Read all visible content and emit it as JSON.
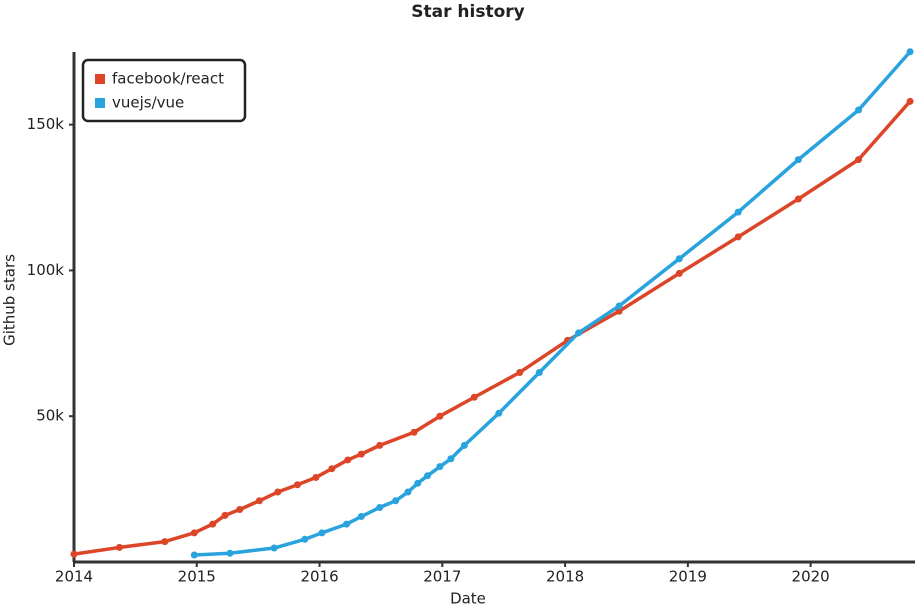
{
  "chart_data": {
    "type": "line",
    "title": "Star history",
    "x_label": "Date",
    "y_label": "Github stars",
    "xlim": [
      2014,
      2020.85
    ],
    "xticks": [
      2014,
      2015,
      2016,
      2017,
      2018,
      2019,
      2020
    ],
    "ylim": [
      0,
      178000
    ],
    "yticks": [
      {
        "value": 50000,
        "label": "50k"
      },
      {
        "value": 100000,
        "label": "100k"
      },
      {
        "value": 150000,
        "label": "150k"
      }
    ],
    "legend": "top-left",
    "series": [
      {
        "name": "facebook/react",
        "color": "#dd4528",
        "x": [
          2014.0,
          2014.37,
          2014.74,
          2014.98,
          2015.13,
          2015.23,
          2015.35,
          2015.51,
          2015.66,
          2015.82,
          2015.97,
          2016.1,
          2016.23,
          2016.34,
          2016.49,
          2016.77,
          2016.98,
          2017.26,
          2017.63,
          2018.02,
          2018.44,
          2018.93,
          2019.41,
          2019.9,
          2020.39,
          2020.81
        ],
        "values": [
          2700,
          5000,
          7000,
          10000,
          13000,
          16000,
          18000,
          21000,
          24000,
          26500,
          29000,
          32000,
          35000,
          37000,
          40000,
          44500,
          50000,
          56500,
          65000,
          76000,
          86000,
          99000,
          111500,
          124500,
          138000,
          158000
        ]
      },
      {
        "name": "vuejs/vue",
        "color": "#28a3dd",
        "x": [
          2014.98,
          2015.27,
          2015.63,
          2015.88,
          2016.02,
          2016.22,
          2016.34,
          2016.49,
          2016.62,
          2016.72,
          2016.8,
          2016.88,
          2016.98,
          2017.07,
          2017.18,
          2017.46,
          2017.79,
          2018.11,
          2018.44,
          2018.93,
          2019.41,
          2019.9,
          2020.39,
          2020.81
        ],
        "values": [
          2400,
          3000,
          4800,
          7800,
          10000,
          13000,
          15600,
          18700,
          21000,
          24000,
          27000,
          29600,
          32700,
          35400,
          40000,
          51000,
          65000,
          78600,
          87800,
          104000,
          120000,
          138000,
          155000,
          175000
        ]
      }
    ]
  }
}
